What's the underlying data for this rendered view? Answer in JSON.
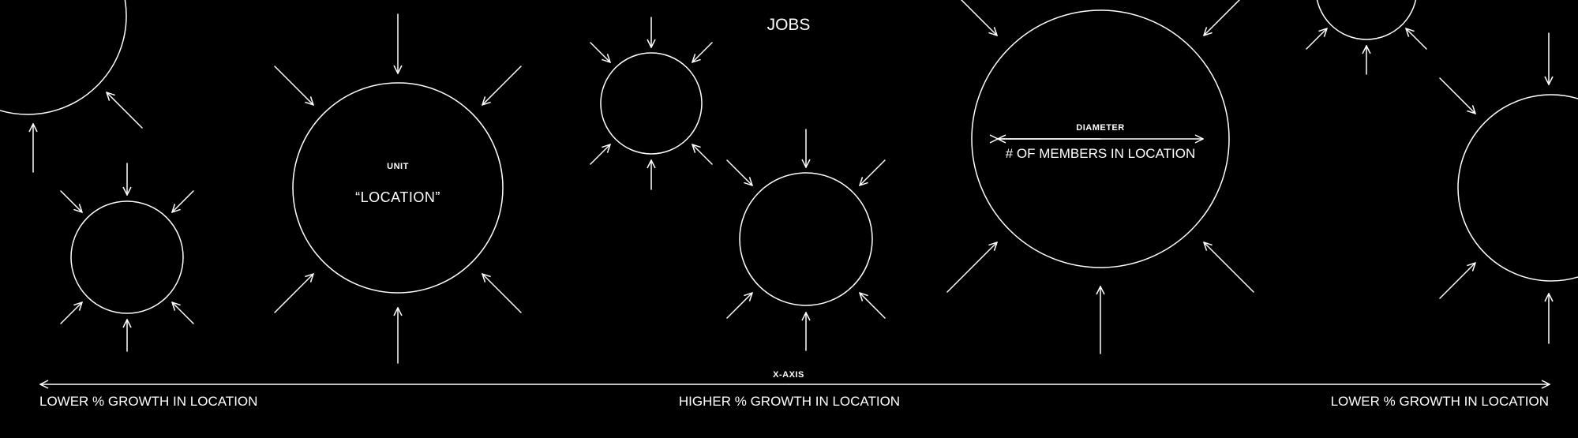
{
  "title": "JOBS",
  "unit_label": "UNIT",
  "unit_value": "“LOCATION”",
  "diameter_label": "DIAMETER",
  "diameter_value": "# OF MEMBERS IN LOCATION",
  "x_axis_label": "X-AXIS",
  "left_label": "LOWER % GROWTH IN LOCATION",
  "center_label": "HIGHER % GROWTH IN LOCATION",
  "right_label": "LOWER % GROWTH IN LOCATION",
  "colors": {
    "background": "#000000",
    "foreground": "#ffffff"
  }
}
